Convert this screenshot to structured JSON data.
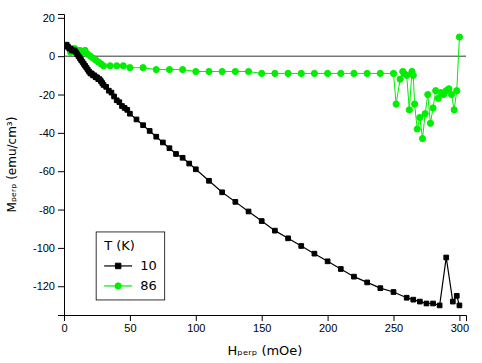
{
  "chart_data": {
    "type": "line",
    "xlabel": "Hₚₑᵣₚ (mOe)",
    "ylabel": "Mₚₑᵣₚ (emu/cm³)",
    "xlim": [
      0,
      305
    ],
    "ylim": [
      -135,
      22
    ],
    "xticks": [
      0,
      50,
      100,
      150,
      200,
      250,
      300
    ],
    "yticks": [
      20,
      0,
      -20,
      -40,
      -60,
      -80,
      -100,
      -120
    ],
    "hline": 0,
    "grid": false,
    "legend": "lower left",
    "legend_title": "T (K)",
    "series": [
      {
        "name": "10",
        "color": "black",
        "marker": "square",
        "x": [
          1,
          2,
          3,
          4,
          5,
          6,
          7,
          8,
          9,
          10,
          11,
          12,
          13,
          14,
          15,
          16,
          17,
          18,
          19,
          20,
          21,
          22,
          23,
          24,
          25,
          26,
          27,
          28,
          29,
          30,
          32,
          34,
          36,
          38,
          40,
          42,
          44,
          46,
          48,
          50,
          55,
          60,
          65,
          70,
          75,
          80,
          85,
          90,
          95,
          100,
          110,
          120,
          130,
          140,
          150,
          160,
          170,
          180,
          190,
          200,
          210,
          220,
          230,
          240,
          250,
          260,
          265,
          270,
          275,
          280,
          285,
          290,
          295,
          298,
          300
        ],
        "values": [
          5,
          6,
          5,
          4,
          4,
          3,
          3,
          3,
          2,
          1,
          0,
          -1,
          -2,
          -3,
          -4,
          -5,
          -6,
          -7,
          -8,
          -9,
          -9,
          -10,
          -10,
          -11,
          -11,
          -12,
          -12,
          -13,
          -14,
          -15,
          -16,
          -18,
          -19,
          -21,
          -23,
          -24,
          -26,
          -27,
          -28,
          -30,
          -33,
          -36,
          -39,
          -42,
          -45,
          -48,
          -51,
          -53,
          -56,
          -59,
          -65,
          -71,
          -76,
          -81,
          -86,
          -91,
          -95,
          -99,
          -103,
          -107,
          -111,
          -115,
          -118,
          -121,
          -123,
          -126,
          -127,
          -128,
          -129,
          -129,
          -130,
          -105,
          -128,
          -125,
          -130
        ]
      },
      {
        "name": "86",
        "color": "#00ee00",
        "marker": "circle",
        "x": [
          5,
          8,
          10,
          12,
          14,
          16,
          18,
          20,
          22,
          24,
          26,
          28,
          30,
          35,
          40,
          45,
          50,
          60,
          70,
          80,
          90,
          100,
          110,
          120,
          130,
          140,
          150,
          160,
          170,
          180,
          190,
          200,
          210,
          220,
          230,
          240,
          250,
          252,
          255,
          257,
          258,
          260,
          262,
          264,
          265,
          266,
          268,
          270,
          272,
          274,
          276,
          278,
          280,
          282,
          284,
          286,
          288,
          290,
          292,
          294,
          296,
          298,
          300
        ],
        "values": [
          2,
          4,
          3,
          3,
          2,
          3,
          1,
          0,
          -1,
          -2,
          -3,
          -4,
          -5,
          -5,
          -5,
          -5,
          -6,
          -6,
          -7,
          -7,
          -7,
          -8,
          -8,
          -8,
          -8,
          -8,
          -9,
          -9,
          -9,
          -9,
          -9,
          -9,
          -9,
          -9,
          -9,
          -9,
          -9,
          -25,
          -12,
          -8,
          -9,
          -10,
          -28,
          -8,
          -10,
          -25,
          -38,
          -32,
          -43,
          -30,
          -20,
          -35,
          -27,
          -18,
          -22,
          -19,
          -20,
          -18,
          -17,
          -20,
          -28,
          -18,
          10
        ]
      }
    ]
  }
}
